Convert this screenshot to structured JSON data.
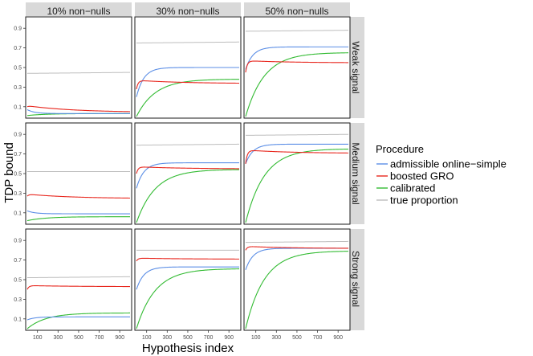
{
  "chart_data": {
    "type": "line",
    "xlabel": "Hypothesis index",
    "ylabel": "TDP bound",
    "xlim": [
      1,
      1000
    ],
    "ylim": [
      0,
      1
    ],
    "xticks": [
      100,
      300,
      500,
      700,
      900
    ],
    "yticks": [
      0.1,
      0.3,
      0.5,
      0.7,
      0.9
    ],
    "col_labels": [
      "10% non−nulls",
      "30% non−nulls",
      "50% non−nulls"
    ],
    "row_labels": [
      "Weak signal",
      "Medium signal",
      "Strong signal"
    ],
    "legend": {
      "title": "Procedure",
      "position": "right",
      "entries": [
        {
          "key": "admissible",
          "label": "admissible online−simple",
          "color": "#5b8ee6"
        },
        {
          "key": "boosted",
          "label": "boosted GRO",
          "color": "#e8261d"
        },
        {
          "key": "calibrated",
          "label": "calibrated",
          "color": "#33bb33"
        },
        {
          "key": "true",
          "label": "true proportion",
          "color": "#bdbdbd"
        }
      ]
    },
    "panels": [
      {
        "row": 0,
        "col": 0,
        "series": {
          "true": {
            "start": 0.44,
            "end": 0.45
          },
          "boosted": {
            "start": 0.1,
            "peak": 0.11,
            "end": 0.05
          },
          "admissible": {
            "start": 0.07,
            "end": 0.03
          },
          "calibrated": {
            "start": 0.01,
            "end": 0.03
          }
        }
      },
      {
        "row": 0,
        "col": 1,
        "series": {
          "true": {
            "start": 0.75,
            "end": 0.76
          },
          "boosted": {
            "start": 0.28,
            "peak": 0.37,
            "end": 0.34
          },
          "admissible": {
            "start": 0.2,
            "end": 0.5
          },
          "calibrated": {
            "start": 0.0,
            "end": 0.38
          }
        }
      },
      {
        "row": 0,
        "col": 2,
        "series": {
          "true": {
            "start": 0.87,
            "end": 0.88
          },
          "boosted": {
            "start": 0.45,
            "peak": 0.57,
            "end": 0.55
          },
          "admissible": {
            "start": 0.48,
            "end": 0.71
          },
          "calibrated": {
            "start": 0.0,
            "end": 0.65
          }
        }
      },
      {
        "row": 1,
        "col": 0,
        "series": {
          "true": {
            "start": 0.52,
            "end": 0.52
          },
          "boosted": {
            "start": 0.27,
            "peak": 0.29,
            "end": 0.25
          },
          "admissible": {
            "start": 0.12,
            "end": 0.09
          },
          "calibrated": {
            "start": 0.02,
            "end": 0.06
          }
        }
      },
      {
        "row": 1,
        "col": 1,
        "series": {
          "true": {
            "start": 0.79,
            "end": 0.8
          },
          "boosted": {
            "start": 0.5,
            "peak": 0.57,
            "end": 0.55
          },
          "admissible": {
            "start": 0.35,
            "end": 0.61
          },
          "calibrated": {
            "start": 0.0,
            "end": 0.54
          }
        }
      },
      {
        "row": 1,
        "col": 2,
        "series": {
          "true": {
            "start": 0.89,
            "end": 0.9
          },
          "boosted": {
            "start": 0.6,
            "peak": 0.74,
            "end": 0.71
          },
          "admissible": {
            "start": 0.6,
            "end": 0.8
          },
          "calibrated": {
            "start": 0.0,
            "end": 0.75
          }
        }
      },
      {
        "row": 2,
        "col": 0,
        "series": {
          "true": {
            "start": 0.52,
            "end": 0.53
          },
          "boosted": {
            "start": 0.4,
            "peak": 0.44,
            "end": 0.43
          },
          "admissible": {
            "start": 0.09,
            "end": 0.12
          },
          "calibrated": {
            "start": 0.0,
            "end": 0.16
          }
        }
      },
      {
        "row": 2,
        "col": 1,
        "series": {
          "true": {
            "start": 0.8,
            "end": 0.8
          },
          "boosted": {
            "start": 0.69,
            "peak": 0.72,
            "end": 0.71
          },
          "admissible": {
            "start": 0.4,
            "end": 0.63
          },
          "calibrated": {
            "start": 0.0,
            "end": 0.61
          }
        }
      },
      {
        "row": 2,
        "col": 2,
        "series": {
          "true": {
            "start": 0.88,
            "end": 0.89
          },
          "boosted": {
            "start": 0.8,
            "peak": 0.84,
            "end": 0.82
          },
          "admissible": {
            "start": 0.6,
            "end": 0.82
          },
          "calibrated": {
            "start": 0.0,
            "end": 0.79
          }
        }
      }
    ]
  }
}
